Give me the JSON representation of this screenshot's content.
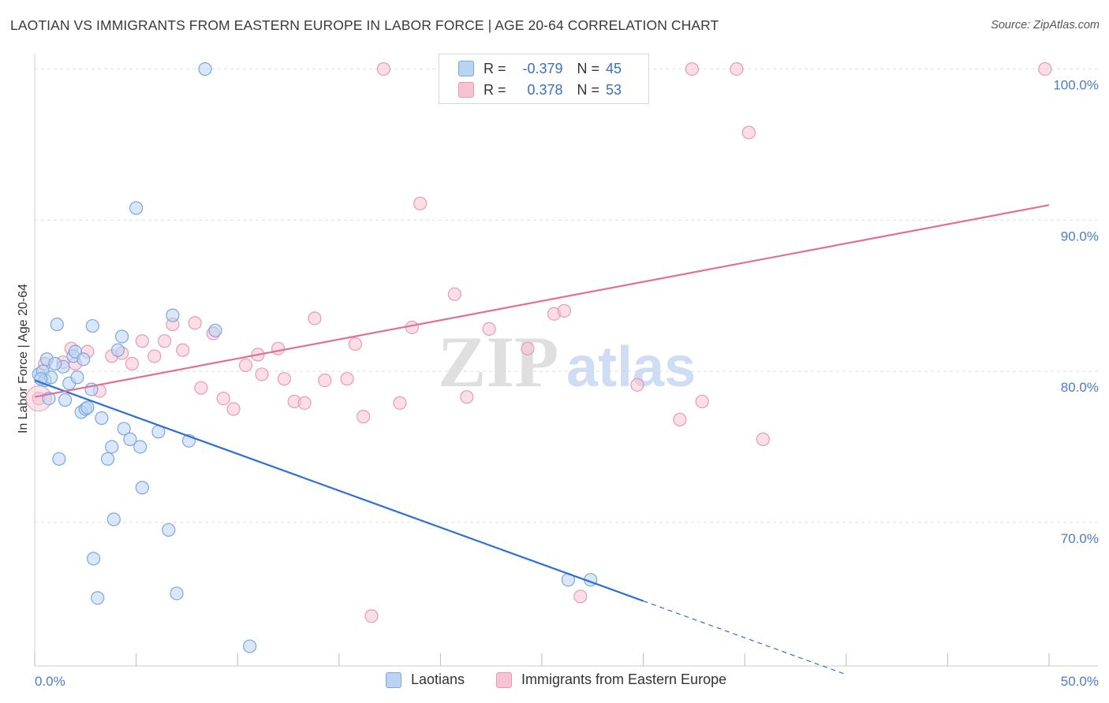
{
  "title": "LAOTIAN VS IMMIGRANTS FROM EASTERN EUROPE IN LABOR FORCE | AGE 20-64 CORRELATION CHART",
  "source": "Source: ZipAtlas.com",
  "legend": {
    "r_label": "R =",
    "n_label": "N =",
    "laotians": {
      "r": "-0.379",
      "n": "45"
    },
    "eastern_europe": {
      "r": "0.378",
      "n": "53"
    }
  },
  "colors": {
    "laotians_fill": "#b9d3f3",
    "laotians_stroke": "#7aa7e3",
    "laotians_line": "#2f6fd1",
    "ee_fill": "#f7c3d2",
    "ee_stroke": "#e99ab3",
    "ee_line": "#e07095"
  },
  "chart_data": {
    "type": "scatter",
    "title": "LAOTIAN VS IMMIGRANTS FROM EASTERN EUROPE IN LABOR FORCE | AGE 20-64 CORRELATION CHART",
    "xlabel": "",
    "ylabel": "In Labor Force | Age 20-64",
    "xlim": [
      0,
      50
    ],
    "ylim": [
      60.5,
      100.5
    ],
    "x_tick_labels": [
      "0.0%",
      "50.0%"
    ],
    "y_ticks": [
      70,
      80,
      90,
      100
    ],
    "y_tick_labels": [
      "70.0%",
      "80.0%",
      "90.0%",
      "100.0%"
    ],
    "watermark": {
      "zip": "ZIP",
      "atlas": "atlas"
    },
    "series": [
      {
        "name": "Laotians",
        "points": [
          [
            0.2,
            79.8
          ],
          [
            0.4,
            80.0
          ],
          [
            0.5,
            79.4
          ],
          [
            0.6,
            80.8
          ],
          [
            0.7,
            78.2
          ],
          [
            0.8,
            79.6
          ],
          [
            1.1,
            83.1
          ],
          [
            1.2,
            74.2
          ],
          [
            1.4,
            80.3
          ],
          [
            1.5,
            78.1
          ],
          [
            1.7,
            79.2
          ],
          [
            1.9,
            81.0
          ],
          [
            2.0,
            81.3
          ],
          [
            2.1,
            79.6
          ],
          [
            2.3,
            77.3
          ],
          [
            2.4,
            80.8
          ],
          [
            2.5,
            77.5
          ],
          [
            2.6,
            77.6
          ],
          [
            2.8,
            78.8
          ],
          [
            2.85,
            83.0
          ],
          [
            2.9,
            67.6
          ],
          [
            3.1,
            65.0
          ],
          [
            3.3,
            76.9
          ],
          [
            3.6,
            74.2
          ],
          [
            3.8,
            75.0
          ],
          [
            3.9,
            70.2
          ],
          [
            4.1,
            81.4
          ],
          [
            4.3,
            82.3
          ],
          [
            4.4,
            76.2
          ],
          [
            4.7,
            75.5
          ],
          [
            5.0,
            90.8
          ],
          [
            5.2,
            75.0
          ],
          [
            5.3,
            72.3
          ],
          [
            6.1,
            76.0
          ],
          [
            6.6,
            69.5
          ],
          [
            6.8,
            83.7
          ],
          [
            7.0,
            65.3
          ],
          [
            7.6,
            75.4
          ],
          [
            8.4,
            100.0
          ],
          [
            8.9,
            82.7
          ],
          [
            10.6,
            61.8
          ],
          [
            26.3,
            66.2
          ],
          [
            27.4,
            66.2
          ],
          [
            0.3,
            79.5
          ],
          [
            1.0,
            80.5
          ]
        ]
      },
      {
        "name": "Immigrants from Eastern Europe",
        "points": [
          [
            0.2,
            78.2
          ],
          [
            0.5,
            80.5
          ],
          [
            1.4,
            80.6
          ],
          [
            1.8,
            81.5
          ],
          [
            2.0,
            80.5
          ],
          [
            2.6,
            81.3
          ],
          [
            3.2,
            78.7
          ],
          [
            3.8,
            81.0
          ],
          [
            4.3,
            81.2
          ],
          [
            4.8,
            80.5
          ],
          [
            5.3,
            82.0
          ],
          [
            5.9,
            81.0
          ],
          [
            6.4,
            82.0
          ],
          [
            6.8,
            83.1
          ],
          [
            7.3,
            81.4
          ],
          [
            7.9,
            83.2
          ],
          [
            8.2,
            78.9
          ],
          [
            8.8,
            82.5
          ],
          [
            9.3,
            78.2
          ],
          [
            9.8,
            77.5
          ],
          [
            10.4,
            80.4
          ],
          [
            11.0,
            81.1
          ],
          [
            11.2,
            79.8
          ],
          [
            12.0,
            81.5
          ],
          [
            12.3,
            79.5
          ],
          [
            12.8,
            78.0
          ],
          [
            13.3,
            77.9
          ],
          [
            13.8,
            83.5
          ],
          [
            14.3,
            79.4
          ],
          [
            15.4,
            79.5
          ],
          [
            15.8,
            81.8
          ],
          [
            16.2,
            77.0
          ],
          [
            16.6,
            63.8
          ],
          [
            17.2,
            100.0
          ],
          [
            18.0,
            77.9
          ],
          [
            18.6,
            82.9
          ],
          [
            19.0,
            91.1
          ],
          [
            20.7,
            85.1
          ],
          [
            21.3,
            78.3
          ],
          [
            22.4,
            82.8
          ],
          [
            24.3,
            81.5
          ],
          [
            25.6,
            83.8
          ],
          [
            26.1,
            84.0
          ],
          [
            27.1,
            100.0
          ],
          [
            26.9,
            65.1
          ],
          [
            29.7,
            79.1
          ],
          [
            31.8,
            76.8
          ],
          [
            32.4,
            100.0
          ],
          [
            32.9,
            78.0
          ],
          [
            34.6,
            100.0
          ],
          [
            35.2,
            95.8
          ],
          [
            35.9,
            75.5
          ],
          [
            49.8,
            100.0
          ]
        ]
      }
    ],
    "trend_lines": [
      {
        "series": "Laotians",
        "x": [
          0,
          30.0
        ],
        "y": [
          79.4,
          64.8
        ],
        "dashed_extension_to_x": 40
      },
      {
        "series": "Immigrants from Eastern Europe",
        "x": [
          0,
          50.0
        ],
        "y": [
          78.3,
          91.0
        ]
      }
    ]
  },
  "bottom_legend": [
    "Laotians",
    "Immigrants from Eastern Europe"
  ]
}
